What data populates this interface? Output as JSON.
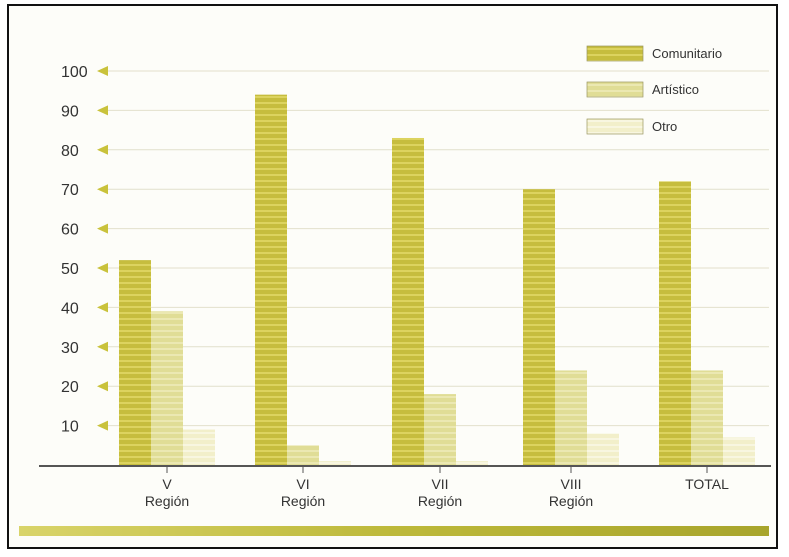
{
  "chart_data": {
    "type": "bar",
    "categories": [
      [
        "V",
        "Región"
      ],
      [
        "VI",
        "Región"
      ],
      [
        "VII",
        "Región"
      ],
      [
        "VIII",
        "Región"
      ],
      [
        "TOTAL"
      ]
    ],
    "series": [
      {
        "name": "Comunitario",
        "values": [
          52,
          94,
          83,
          70,
          72
        ]
      },
      {
        "name": "Artístico",
        "values": [
          39,
          5,
          18,
          24,
          24
        ]
      },
      {
        "name": "Otro",
        "values": [
          9,
          1,
          1,
          8,
          7
        ]
      }
    ],
    "y_ticks": [
      10,
      20,
      30,
      40,
      50,
      60,
      70,
      80,
      90,
      100
    ],
    "ylim": [
      0,
      100
    ],
    "legend_position": "top-right",
    "grid": true
  },
  "colors": {
    "comunitario": "#c6bd3e",
    "comunitario_stripe": "#dcd35f",
    "artistico": "#e0dd96",
    "otro": "#f2efca",
    "tick_arrow": "#c9c23b",
    "axis": "#555555",
    "grid": "#e2e0cc",
    "bottom_band": "#bdb93a"
  }
}
